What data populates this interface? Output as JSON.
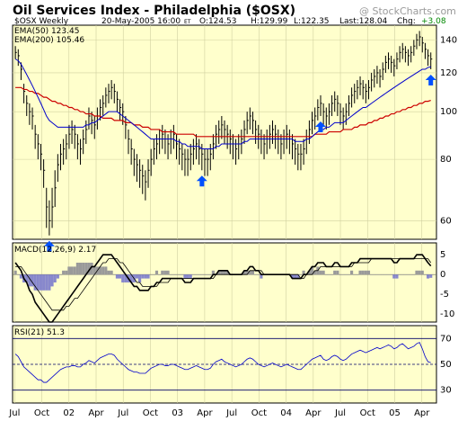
{
  "header": {
    "title": "Oil Services Index - Philadelphia ($OSX)",
    "watermark": "@ StockCharts.com",
    "symbol_line": "$OSX Weekly",
    "date_line": "20-May-2005 16:00",
    "tz": "ET",
    "open_label": "O:124.53",
    "high_label": "H:129.99",
    "low_label": "L:122.35",
    "last_label": "Last:128.04",
    "chg_label": "Chg:",
    "chg_value": "+3.08"
  },
  "legend": {
    "ema50": "EMA(50) 123.45",
    "ema200": "EMA(200) 105.46",
    "macd": "MACD(12,26,9) 2.17",
    "rsi": "RSI(21) 51.3"
  },
  "colors": {
    "plot_bg": "#ffffcc",
    "price": "#000000",
    "ema50": "#0000cc",
    "ema200": "#cc0000",
    "histogram": "#8888cc",
    "macd_hist_pos": "#9a9a9a",
    "arrow": "#0050ff",
    "chg": "#008800",
    "grid": "#d0d0a0"
  },
  "chart_data": [
    {
      "type": "line",
      "name": "price",
      "title": "Oil Services Index - Philadelphia ($OSX)",
      "ylim": [
        55,
        150
      ],
      "yticks": [
        60,
        80,
        100,
        120,
        140
      ],
      "x_labels": [
        "Jul",
        "Oct",
        "02",
        "Apr",
        "Jul",
        "Oct",
        "03",
        "Apr",
        "Jul",
        "Oct",
        "04",
        "Apr",
        "Jul",
        "Oct",
        "05",
        "Apr"
      ],
      "x_label_t": [
        1,
        14,
        27,
        40,
        53,
        66,
        79,
        92,
        105,
        118,
        131,
        144,
        157,
        170,
        183,
        196
      ],
      "t_max": 203,
      "close": [
        132,
        130,
        122,
        110,
        104,
        100,
        98,
        90,
        86,
        82,
        76,
        64,
        60,
        64,
        70,
        78,
        82,
        84,
        86,
        90,
        92,
        90,
        86,
        84,
        88,
        92,
        98,
        96,
        94,
        98,
        102,
        104,
        108,
        110,
        112,
        110,
        106,
        102,
        100,
        94,
        88,
        84,
        80,
        78,
        76,
        74,
        72,
        76,
        80,
        84,
        86,
        88,
        90,
        88,
        86,
        88,
        90,
        86,
        84,
        82,
        80,
        80,
        82,
        84,
        86,
        84,
        82,
        80,
        80,
        82,
        86,
        90,
        92,
        94,
        92,
        90,
        88,
        86,
        84,
        86,
        88,
        92,
        96,
        98,
        96,
        92,
        90,
        88,
        86,
        88,
        90,
        92,
        90,
        88,
        86,
        88,
        90,
        88,
        86,
        84,
        82,
        82,
        84,
        88,
        92,
        96,
        98,
        102,
        104,
        100,
        98,
        100,
        104,
        106,
        104,
        100,
        98,
        100,
        104,
        108,
        110,
        112,
        114,
        112,
        110,
        112,
        116,
        118,
        120,
        118,
        122,
        126,
        128,
        126,
        124,
        128,
        132,
        134,
        132,
        130,
        132,
        136,
        140,
        142,
        138,
        134,
        130,
        128
      ],
      "high": [
        136,
        134,
        126,
        114,
        108,
        104,
        102,
        94,
        90,
        86,
        80,
        70,
        66,
        70,
        76,
        82,
        86,
        88,
        90,
        94,
        96,
        94,
        90,
        88,
        92,
        96,
        102,
        100,
        98,
        102,
        106,
        108,
        112,
        114,
        116,
        114,
        110,
        106,
        104,
        98,
        92,
        88,
        84,
        82,
        80,
        78,
        76,
        80,
        84,
        88,
        90,
        92,
        94,
        92,
        90,
        92,
        94,
        90,
        88,
        86,
        84,
        84,
        86,
        88,
        90,
        88,
        86,
        84,
        84,
        86,
        90,
        94,
        96,
        98,
        96,
        94,
        92,
        90,
        88,
        90,
        92,
        96,
        100,
        102,
        100,
        96,
        94,
        92,
        90,
        92,
        94,
        96,
        94,
        92,
        90,
        92,
        94,
        92,
        90,
        88,
        86,
        86,
        88,
        92,
        96,
        100,
        102,
        106,
        108,
        104,
        102,
        104,
        108,
        110,
        108,
        104,
        102,
        104,
        108,
        112,
        114,
        116,
        118,
        116,
        114,
        116,
        120,
        122,
        124,
        122,
        126,
        130,
        132,
        130,
        128,
        132,
        136,
        138,
        136,
        134,
        136,
        140,
        144,
        146,
        142,
        138,
        134,
        132
      ],
      "low": [
        128,
        124,
        116,
        104,
        98,
        94,
        92,
        84,
        80,
        76,
        70,
        58,
        56,
        58,
        64,
        72,
        76,
        78,
        80,
        84,
        86,
        84,
        80,
        78,
        82,
        86,
        92,
        90,
        88,
        92,
        96,
        98,
        102,
        104,
        106,
        104,
        100,
        96,
        94,
        88,
        82,
        78,
        74,
        72,
        70,
        68,
        66,
        70,
        74,
        78,
        80,
        82,
        84,
        82,
        80,
        82,
        84,
        80,
        78,
        76,
        74,
        74,
        76,
        78,
        80,
        78,
        76,
        74,
        74,
        76,
        80,
        84,
        86,
        88,
        86,
        84,
        82,
        80,
        78,
        80,
        82,
        86,
        90,
        92,
        90,
        86,
        84,
        82,
        80,
        82,
        84,
        86,
        84,
        82,
        80,
        82,
        84,
        82,
        80,
        78,
        76,
        76,
        78,
        82,
        86,
        90,
        92,
        96,
        98,
        94,
        92,
        94,
        98,
        100,
        98,
        94,
        92,
        94,
        98,
        102,
        104,
        106,
        108,
        106,
        104,
        106,
        110,
        112,
        114,
        112,
        116,
        120,
        122,
        120,
        118,
        122,
        126,
        128,
        126,
        124,
        126,
        130,
        134,
        136,
        132,
        128,
        124,
        122
      ],
      "ema50": [
        128,
        127,
        125,
        122,
        119,
        116,
        113,
        110,
        107,
        104,
        101,
        98,
        96,
        95,
        94,
        93,
        93,
        93,
        93,
        93,
        93,
        93,
        93,
        93,
        93,
        94,
        94,
        95,
        95,
        96,
        97,
        98,
        99,
        100,
        100,
        100,
        100,
        99,
        98,
        97,
        96,
        95,
        94,
        93,
        92,
        91,
        90,
        89,
        88,
        88,
        88,
        88,
        88,
        88,
        88,
        88,
        88,
        87,
        87,
        86,
        86,
        85,
        85,
        85,
        85,
        85,
        84,
        84,
        84,
        84,
        84,
        85,
        85,
        86,
        86,
        86,
        86,
        86,
        86,
        86,
        86,
        87,
        87,
        88,
        88,
        88,
        88,
        88,
        88,
        88,
        88,
        88,
        88,
        88,
        88,
        88,
        88,
        88,
        88,
        87,
        87,
        87,
        87,
        88,
        88,
        89,
        90,
        91,
        92,
        92,
        93,
        93,
        94,
        95,
        95,
        95,
        95,
        96,
        97,
        98,
        99,
        100,
        101,
        102,
        102,
        103,
        104,
        105,
        106,
        107,
        108,
        109,
        110,
        111,
        112,
        113,
        114,
        115,
        116,
        117,
        118,
        119,
        120,
        121,
        122,
        122,
        123,
        123.45
      ],
      "ema200": [
        112,
        112,
        112,
        111,
        111,
        110,
        110,
        109,
        109,
        108,
        107,
        107,
        106,
        105,
        105,
        104,
        104,
        103,
        103,
        102,
        102,
        101,
        101,
        100,
        100,
        99,
        99,
        99,
        98,
        98,
        98,
        97,
        97,
        97,
        97,
        96,
        96,
        96,
        96,
        95,
        95,
        95,
        94,
        94,
        94,
        93,
        93,
        93,
        92,
        92,
        92,
        92,
        91,
        91,
        91,
        91,
        91,
        90,
        90,
        90,
        90,
        90,
        90,
        90,
        89,
        89,
        89,
        89,
        89,
        89,
        89,
        89,
        89,
        89,
        89,
        89,
        89,
        89,
        89,
        89,
        89,
        89,
        89,
        89,
        89,
        89,
        89,
        89,
        89,
        89,
        89,
        89,
        89,
        89,
        89,
        89,
        89,
        89,
        89,
        89,
        89,
        89,
        89,
        89,
        89,
        89,
        90,
        90,
        90,
        90,
        90,
        91,
        91,
        91,
        91,
        91,
        92,
        92,
        92,
        92,
        93,
        93,
        94,
        94,
        94,
        95,
        95,
        96,
        96,
        97,
        97,
        98,
        98,
        99,
        99,
        100,
        100,
        101,
        101,
        102,
        102,
        103,
        103,
        104,
        104,
        105,
        105,
        105.46
      ],
      "arrow_indices": [
        12,
        66,
        108,
        147
      ],
      "arrows": [
        "up",
        "up",
        "up",
        "up"
      ]
    },
    {
      "type": "area",
      "name": "macd",
      "ylim": [
        -12,
        8
      ],
      "yticks": [
        5,
        0,
        -5,
        -10
      ],
      "macd_line": [
        3,
        2,
        1,
        -1,
        -2,
        -4,
        -5,
        -7,
        -8,
        -9,
        -10,
        -11,
        -12,
        -12,
        -11,
        -10,
        -9,
        -8,
        -7,
        -6,
        -5,
        -4,
        -3,
        -2,
        -1,
        0,
        1,
        2,
        2,
        3,
        4,
        5,
        5,
        5,
        5,
        4,
        3,
        2,
        1,
        0,
        -1,
        -2,
        -3,
        -3,
        -4,
        -4,
        -4,
        -4,
        -3,
        -3,
        -2,
        -2,
        -1,
        -1,
        -1,
        -1,
        -1,
        -1,
        -1,
        -1,
        -2,
        -2,
        -2,
        -1,
        -1,
        -1,
        -1,
        -1,
        -1,
        -1,
        0,
        0,
        1,
        1,
        1,
        1,
        0,
        0,
        0,
        0,
        0,
        1,
        1,
        2,
        2,
        1,
        1,
        0,
        0,
        0,
        0,
        0,
        0,
        0,
        0,
        0,
        0,
        0,
        -1,
        -1,
        -1,
        -1,
        0,
        0,
        1,
        2,
        2,
        3,
        3,
        3,
        2,
        2,
        2,
        3,
        3,
        2,
        2,
        2,
        2,
        3,
        3,
        3,
        4,
        4,
        4,
        4,
        4,
        4,
        4,
        4,
        4,
        4,
        4,
        4,
        3,
        3,
        4,
        4,
        4,
        4,
        4,
        4,
        5,
        5,
        5,
        4,
        3,
        2.17
      ],
      "signal_line": [
        2,
        2,
        2,
        1,
        0,
        -1,
        -2,
        -3,
        -4,
        -5,
        -6,
        -7,
        -8,
        -9,
        -9,
        -9,
        -9,
        -9,
        -8,
        -8,
        -7,
        -6,
        -6,
        -5,
        -4,
        -3,
        -2,
        -1,
        0,
        1,
        2,
        3,
        3,
        4,
        4,
        4,
        4,
        3,
        3,
        2,
        1,
        0,
        -1,
        -2,
        -2,
        -3,
        -3,
        -3,
        -3,
        -3,
        -3,
        -2,
        -2,
        -2,
        -2,
        -1,
        -1,
        -1,
        -1,
        -1,
        -1,
        -1,
        -1,
        -1,
        -1,
        -1,
        -1,
        -1,
        -1,
        -1,
        -1,
        0,
        0,
        0,
        0,
        0,
        0,
        0,
        0,
        0,
        0,
        0,
        0,
        1,
        1,
        1,
        1,
        1,
        0,
        0,
        0,
        0,
        0,
        0,
        0,
        0,
        0,
        0,
        0,
        0,
        0,
        -1,
        -1,
        0,
        0,
        0,
        1,
        1,
        2,
        2,
        2,
        2,
        2,
        2,
        2,
        2,
        2,
        2,
        2,
        2,
        3,
        3,
        3,
        3,
        3,
        3,
        4,
        4,
        4,
        4,
        4,
        4,
        4,
        4,
        4,
        4,
        4,
        4,
        4,
        4,
        4,
        4,
        4,
        4,
        4,
        4,
        4,
        3
      ]
    },
    {
      "type": "line",
      "name": "rsi",
      "ylim": [
        20,
        80
      ],
      "yticks": [
        70,
        50,
        30
      ],
      "values": [
        58,
        56,
        52,
        48,
        46,
        44,
        42,
        40,
        38,
        38,
        36,
        36,
        38,
        40,
        42,
        44,
        46,
        47,
        48,
        48,
        49,
        49,
        48,
        48,
        50,
        51,
        53,
        52,
        51,
        53,
        55,
        56,
        57,
        58,
        58,
        57,
        54,
        52,
        50,
        48,
        46,
        45,
        44,
        44,
        43,
        43,
        43,
        45,
        47,
        48,
        49,
        50,
        50,
        49,
        49,
        50,
        50,
        49,
        48,
        47,
        46,
        46,
        47,
        48,
        49,
        48,
        47,
        46,
        46,
        47,
        50,
        52,
        53,
        54,
        52,
        51,
        50,
        49,
        48,
        49,
        50,
        52,
        54,
        55,
        54,
        52,
        50,
        49,
        48,
        49,
        50,
        51,
        50,
        49,
        48,
        49,
        50,
        49,
        48,
        47,
        46,
        46,
        48,
        50,
        52,
        54,
        55,
        56,
        57,
        54,
        53,
        54,
        56,
        57,
        56,
        54,
        53,
        54,
        56,
        58,
        59,
        60,
        61,
        60,
        59,
        60,
        61,
        62,
        63,
        62,
        63,
        64,
        65,
        64,
        62,
        63,
        65,
        66,
        64,
        62,
        63,
        64,
        66,
        67,
        62,
        56,
        52,
        51.3
      ]
    }
  ]
}
